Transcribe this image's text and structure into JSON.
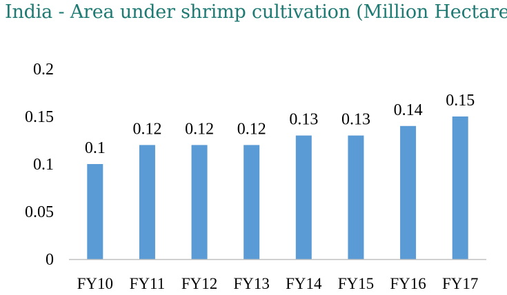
{
  "chart_data": {
    "type": "bar",
    "title": "India - Area under shrimp cultivation (Million Hectares)",
    "categories": [
      "FY10",
      "FY11",
      "FY12",
      "FY13",
      "FY14",
      "FY15",
      "FY16",
      "FY17"
    ],
    "values": [
      0.1,
      0.12,
      0.12,
      0.12,
      0.13,
      0.13,
      0.14,
      0.15
    ],
    "data_labels": [
      "0.1",
      "0.12",
      "0.12",
      "0.12",
      "0.13",
      "0.13",
      "0.14",
      "0.15"
    ],
    "y_ticks": [
      0,
      0.05,
      0.1,
      0.15,
      0.2
    ],
    "y_tick_labels": [
      "0",
      "0.05",
      "0.1",
      "0.15",
      "0.2"
    ],
    "ylim": [
      0,
      0.2
    ],
    "xlabel": "",
    "ylabel": "",
    "grid": false,
    "legend": "none",
    "bar_color": "#5b9bd5",
    "title_color": "#1f7a73"
  }
}
